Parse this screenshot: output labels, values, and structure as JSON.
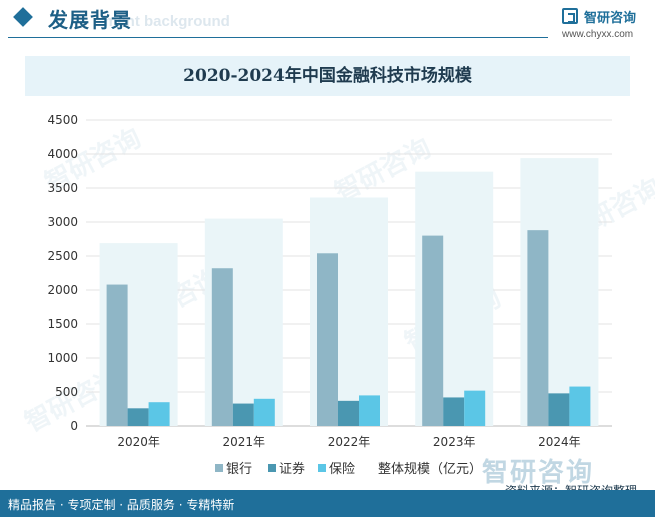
{
  "header": {
    "title": "发展背景",
    "subtitle": "ment background",
    "logo_name": "智研咨询",
    "logo_url": "www.chyxx.com"
  },
  "watermark": "智研咨询",
  "footer": {
    "left": "精品报告 · 专项定制 · 品质服务 · 专精特新",
    "source": "资料来源：智研咨询整理"
  },
  "colors": {
    "bank": "#8fb6c6",
    "securities": "#4a97b1",
    "insurance": "#5bc6e6",
    "total": "#eaf5f8",
    "brand": "#1f6f9a"
  },
  "chart_data": {
    "type": "bar",
    "title": "2020-2024年中国金融科技市场规模",
    "categories": [
      "2020年",
      "2021年",
      "2022年",
      "2023年",
      "2024年"
    ],
    "series": [
      {
        "name": "银行",
        "values": [
          2080,
          2320,
          2540,
          2800,
          2880
        ]
      },
      {
        "name": "证券",
        "values": [
          260,
          330,
          370,
          420,
          480
        ]
      },
      {
        "name": "保险",
        "values": [
          350,
          400,
          450,
          520,
          580
        ]
      },
      {
        "name": "整体规模（亿元）",
        "values": [
          2690,
          3050,
          3360,
          3740,
          3940
        ]
      }
    ],
    "ylim": [
      0,
      4500
    ],
    "yticks": [
      "0",
      "500",
      "1000",
      "1500",
      "2000",
      "2500",
      "3000",
      "3500",
      "4000",
      "4500"
    ],
    "legend_position": "bottom",
    "grid": true
  }
}
